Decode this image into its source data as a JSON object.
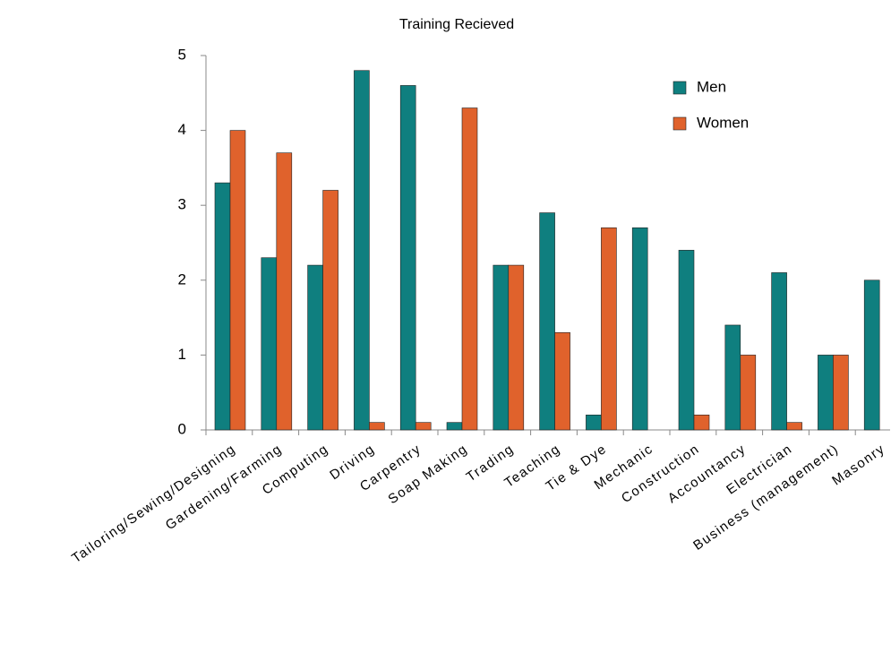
{
  "chart_data": {
    "type": "bar",
    "title": "Training Recieved",
    "categories": [
      "Tailoring/Sewing/Designing",
      "Gardening/Farming",
      "Computing",
      "Driving",
      "Carpentry",
      "Soap Making",
      "Trading",
      "Teaching",
      "Tie & Dye",
      "Mechanic",
      "Construction",
      "Accountancy",
      "Electrician",
      "Business (management)",
      "Masonry"
    ],
    "series": [
      {
        "name": "Men",
        "color": "#0f7f7f",
        "values": [
          3.3,
          2.3,
          2.2,
          4.8,
          4.6,
          0.1,
          2.2,
          2.9,
          0.2,
          2.7,
          2.4,
          1.4,
          2.1,
          1.0,
          2.0
        ]
      },
      {
        "name": "Women",
        "color": "#e0622c",
        "values": [
          4.0,
          3.7,
          3.2,
          0.1,
          0.1,
          4.3,
          2.2,
          1.3,
          2.7,
          0,
          0.2,
          1.0,
          0.1,
          1.0,
          0
        ]
      }
    ],
    "ylim": [
      0,
      5
    ],
    "yticks": [
      0,
      1,
      2,
      3,
      4,
      5
    ],
    "grid": false,
    "legend": "top-right"
  }
}
